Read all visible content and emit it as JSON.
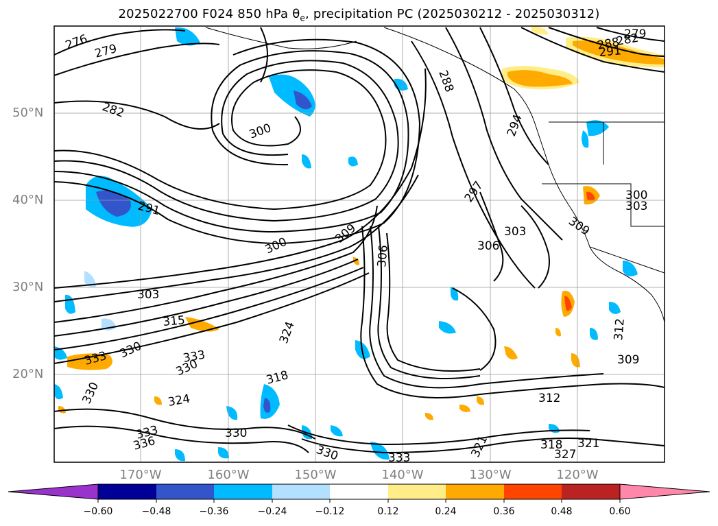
{
  "title": "2025022700 F024 850 hPa θ",
  "title_sub": "e",
  "title_rest": ", precipitation PC (2025030212 - 2025030312)",
  "lat_labels": [
    "50°N",
    "40°N",
    "30°N",
    "20°N"
  ],
  "lon_labels": [
    "170°W",
    "160°W",
    "150°W",
    "140°W",
    "130°W",
    "120°W"
  ],
  "contour_labels": [
    "276",
    "279",
    "282",
    "300",
    "291",
    "300",
    "309",
    "306",
    "297",
    "294",
    "288",
    "303",
    "306",
    "309",
    "300",
    "303",
    "303",
    "315",
    "330",
    "333",
    "333",
    "330",
    "324",
    "330",
    "336",
    "333",
    "330",
    "318",
    "324",
    "312",
    "321",
    "318",
    "327",
    "321",
    "333",
    "330",
    "312",
    "309",
    "279",
    "288",
    "291",
    "282"
  ],
  "colorbar": {
    "ticks": [
      "−0.60",
      "−0.48",
      "−0.36",
      "−0.24",
      "−0.12",
      "0.12",
      "0.24",
      "0.36",
      "0.48",
      "0.60"
    ],
    "colors": [
      "#9933cc",
      "#000099",
      "#3355cc",
      "#00bbff",
      "#b3e0ff",
      "#ffffff",
      "#ffee88",
      "#ffaa00",
      "#ff4400",
      "#bb2222",
      "#ff88aa"
    ]
  },
  "colors": {
    "axis_label": "#808080",
    "contour": "#000000",
    "grid": "#999999"
  }
}
